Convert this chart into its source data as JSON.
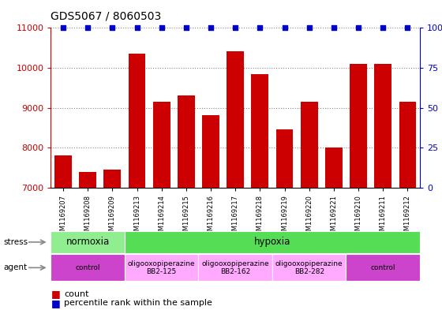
{
  "title": "GDS5067 / 8060503",
  "samples": [
    "GSM1169207",
    "GSM1169208",
    "GSM1169209",
    "GSM1169213",
    "GSM1169214",
    "GSM1169215",
    "GSM1169216",
    "GSM1169217",
    "GSM1169218",
    "GSM1169219",
    "GSM1169220",
    "GSM1169221",
    "GSM1169210",
    "GSM1169211",
    "GSM1169212"
  ],
  "counts": [
    7800,
    7400,
    7450,
    10350,
    9150,
    9300,
    8820,
    10420,
    9850,
    8450,
    9150,
    8000,
    10100,
    10100,
    9150
  ],
  "percentiles": [
    100,
    100,
    100,
    100,
    100,
    100,
    100,
    100,
    100,
    100,
    100,
    100,
    100,
    100,
    100
  ],
  "bar_color": "#cc0000",
  "dot_color": "#0000cc",
  "ylim_left": [
    7000,
    11000
  ],
  "ylim_right": [
    0,
    100
  ],
  "yticks_left": [
    7000,
    8000,
    9000,
    10000,
    11000
  ],
  "yticks_right": [
    0,
    25,
    50,
    75,
    100
  ],
  "stress_groups": [
    {
      "label": "normoxia",
      "start": 0,
      "end": 3,
      "color": "#90ee90"
    },
    {
      "label": "hypoxia",
      "start": 3,
      "end": 15,
      "color": "#55dd55"
    }
  ],
  "agent_groups": [
    {
      "label": "control",
      "start": 0,
      "end": 3,
      "color": "#cc44cc"
    },
    {
      "label": "oligooxopiperazine\nBB2-125",
      "start": 3,
      "end": 6,
      "color": "#ffaaff"
    },
    {
      "label": "oligooxopiperazine\nBB2-162",
      "start": 6,
      "end": 9,
      "color": "#ffaaff"
    },
    {
      "label": "oligooxopiperazine\nBB2-282",
      "start": 9,
      "end": 12,
      "color": "#ffaaff"
    },
    {
      "label": "control",
      "start": 12,
      "end": 15,
      "color": "#cc44cc"
    }
  ],
  "legend_count_label": "count",
  "legend_pct_label": "percentile rank within the sample",
  "bar_color_hex": "#cc0000",
  "dot_color_hex": "#0000cc"
}
